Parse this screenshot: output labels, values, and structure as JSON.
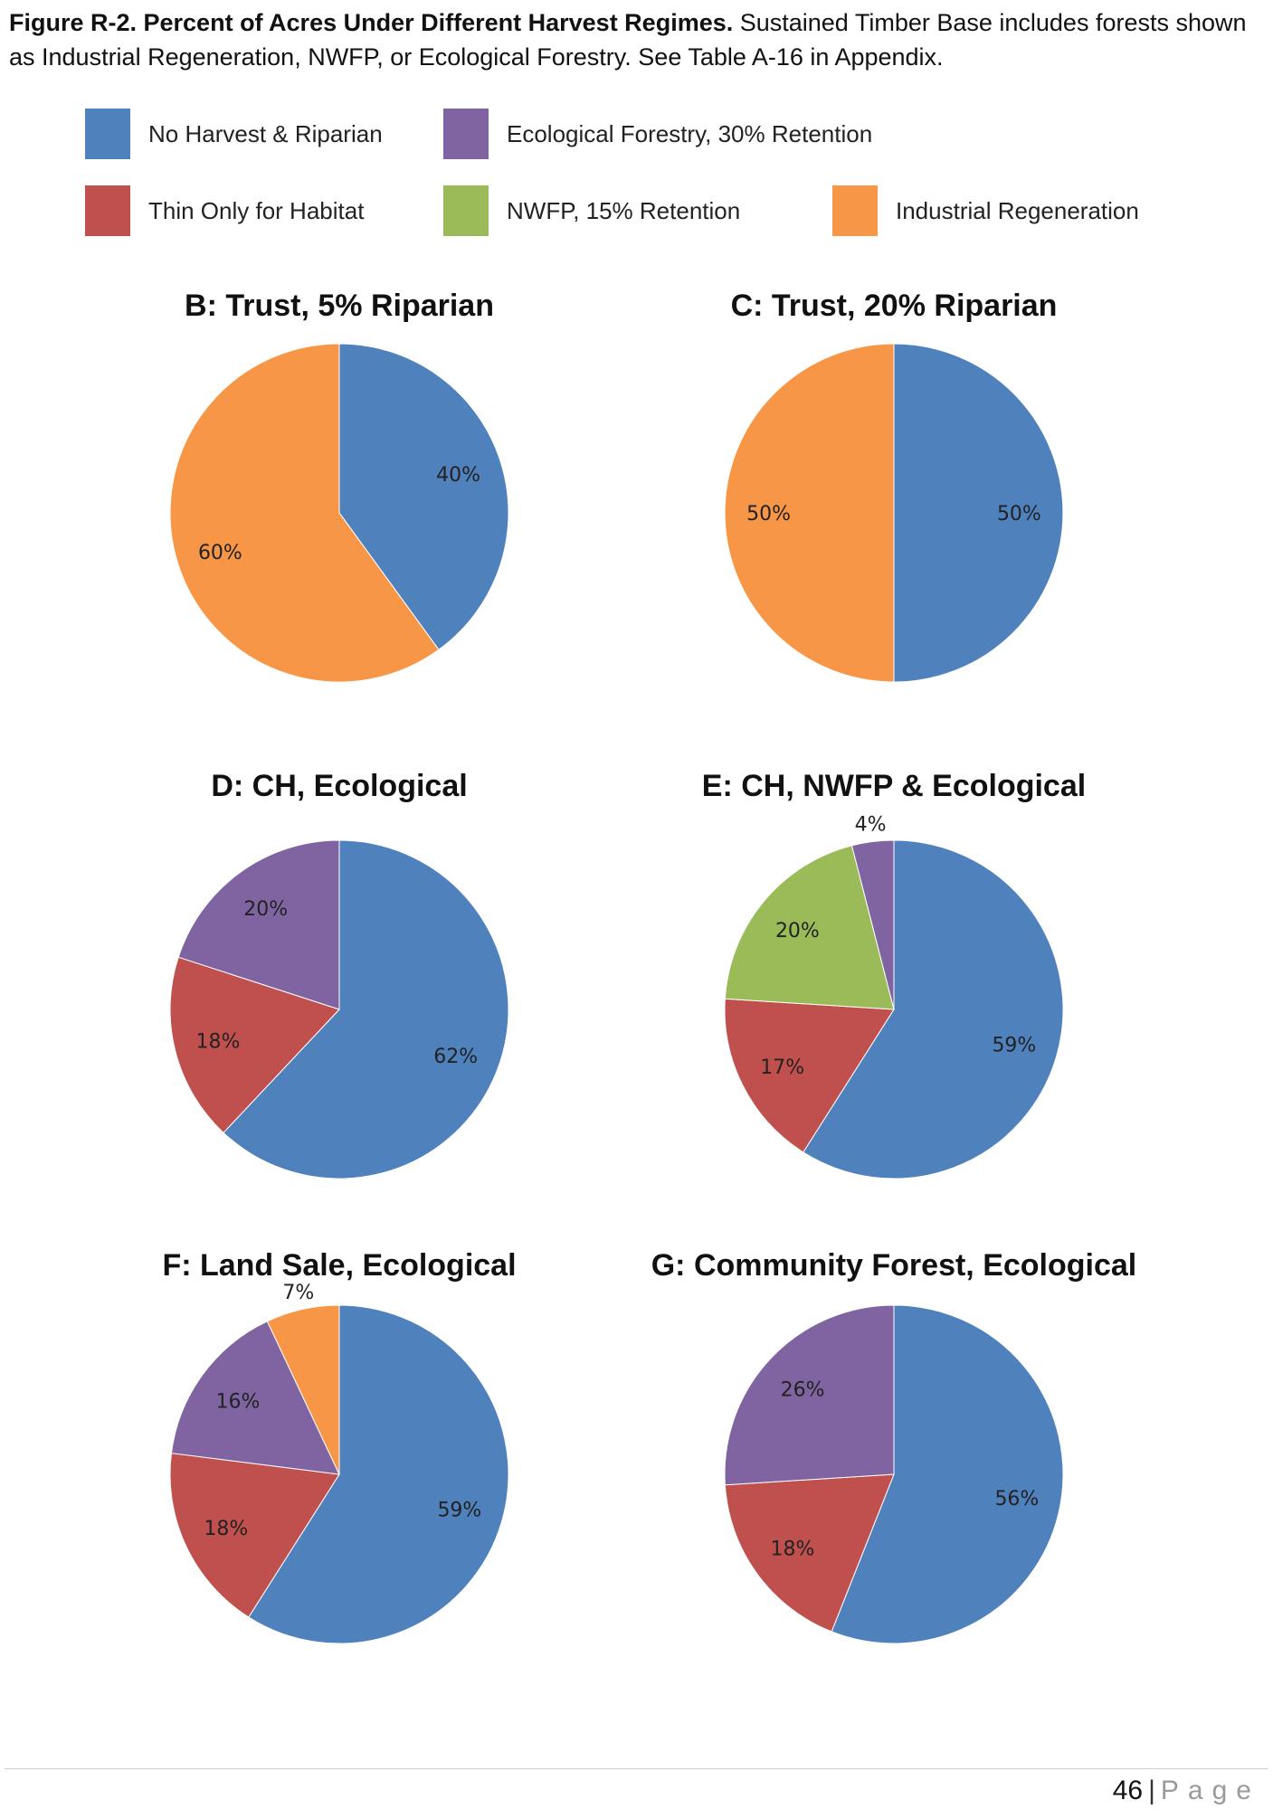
{
  "caption": {
    "figure_title": "Figure R-2. Percent of Acres Under Different Harvest Regimes.",
    "text": " Sustained Timber Base includes forests shown as Industrial Regeneration, NWFP, or Ecological Forestry. See Table A-16 in Appendix."
  },
  "colors": {
    "no_harvest": "#4F81BD",
    "ecological": "#8064A2",
    "thin": "#C0504D",
    "nwfp": "#9BBB59",
    "industrial": "#F79646"
  },
  "legend": [
    {
      "key": "no_harvest",
      "label": "No Harvest & Riparian"
    },
    {
      "key": "ecological",
      "label": "Ecological Forestry, 30% Retention"
    },
    {
      "key": "thin",
      "label": "Thin Only for Habitat"
    },
    {
      "key": "nwfp",
      "label": "NWFP, 15% Retention"
    },
    {
      "key": "industrial",
      "label": "Industrial Regeneration"
    }
  ],
  "chart_data": [
    {
      "type": "pie",
      "title": "B: Trust, 5% Riparian",
      "slices": [
        {
          "key": "no_harvest",
          "value": 40,
          "label": "40%"
        },
        {
          "key": "industrial",
          "value": 60,
          "label": "60%"
        }
      ]
    },
    {
      "type": "pie",
      "title": "C: Trust, 20% Riparian",
      "slices": [
        {
          "key": "no_harvest",
          "value": 50,
          "label": "50%"
        },
        {
          "key": "industrial",
          "value": 50,
          "label": "50%"
        }
      ]
    },
    {
      "type": "pie",
      "title": "D: CH, Ecological",
      "slices": [
        {
          "key": "no_harvest",
          "value": 62,
          "label": "62%"
        },
        {
          "key": "thin",
          "value": 18,
          "label": "18%"
        },
        {
          "key": "ecological",
          "value": 20,
          "label": "20%"
        }
      ]
    },
    {
      "type": "pie",
      "title": "E: CH, NWFP & Ecological",
      "slices": [
        {
          "key": "no_harvest",
          "value": 59,
          "label": "59%"
        },
        {
          "key": "thin",
          "value": 17,
          "label": "17%"
        },
        {
          "key": "nwfp",
          "value": 20,
          "label": "20%"
        },
        {
          "key": "ecological",
          "value": 4,
          "label": "4%"
        }
      ]
    },
    {
      "type": "pie",
      "title": "F: Land Sale, Ecological",
      "slices": [
        {
          "key": "no_harvest",
          "value": 59,
          "label": "59%"
        },
        {
          "key": "thin",
          "value": 18,
          "label": "18%"
        },
        {
          "key": "ecological",
          "value": 16,
          "label": "16%"
        },
        {
          "key": "industrial",
          "value": 7,
          "label": "7%"
        }
      ]
    },
    {
      "type": "pie",
      "title": "G: Community Forest, Ecological",
      "slices": [
        {
          "key": "no_harvest",
          "value": 56,
          "label": "56%"
        },
        {
          "key": "thin",
          "value": 18,
          "label": "18%"
        },
        {
          "key": "ecological",
          "value": 26,
          "label": "26%"
        }
      ]
    }
  ],
  "footer": {
    "page_number": "46",
    "separator": "|",
    "page_word": "Page"
  }
}
